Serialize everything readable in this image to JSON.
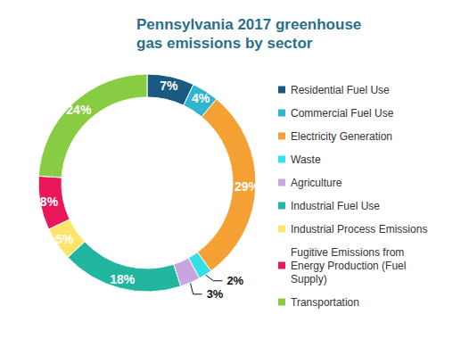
{
  "chart_data": {
    "type": "pie",
    "title": "Pennsylvania 2017 greenhouse gas emissions by sector",
    "categories": [
      "Residential Fuel Use",
      "Commercial Fuel Use",
      "Electricity Generation",
      "Waste",
      "Agriculture",
      "Industrial Fuel Use",
      "Industrial Process Emissions",
      "Fugitive Emissions from Energy Production (Fuel Supply)",
      "Transportation"
    ],
    "values": [
      7,
      4,
      29,
      2,
      3,
      18,
      5,
      8,
      24
    ],
    "value_labels": [
      "7%",
      "4%",
      "29%",
      "2%",
      "3%",
      "18%",
      "5%",
      "8%",
      "24%"
    ],
    "colors": [
      "#1a5a82",
      "#2fb5d0",
      "#f5a033",
      "#34e0e8",
      "#c8a4e0",
      "#22b5a0",
      "#ffe46a",
      "#e8185a",
      "#88cc44"
    ],
    "data_labels": true,
    "legend": "right"
  }
}
